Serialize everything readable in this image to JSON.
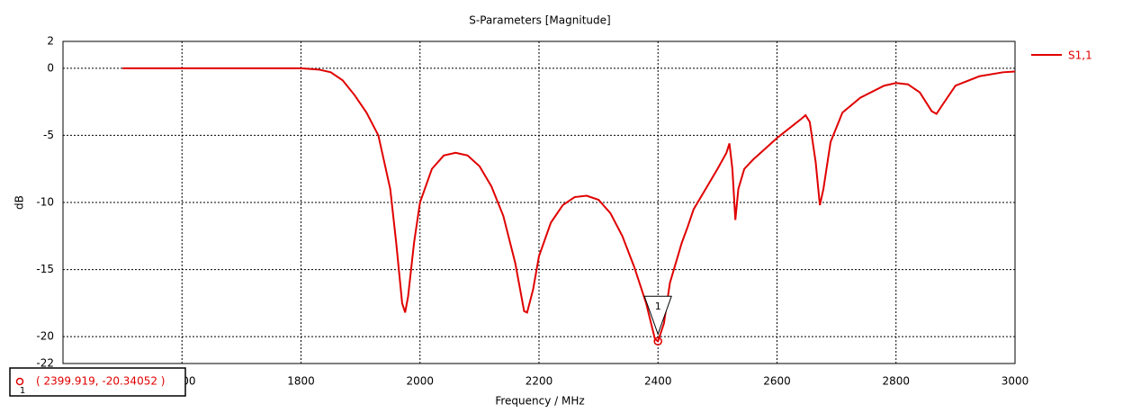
{
  "chart_data": {
    "type": "line",
    "title": "S-Parameters [Magnitude]",
    "x_label": "Frequency / MHz",
    "y_label": "dB",
    "xlim": [
      1400,
      3000
    ],
    "xticks": [
      1600,
      1800,
      2000,
      2200,
      2400,
      2600,
      2800,
      3000
    ],
    "ylim": [
      -22,
      2
    ],
    "yticks": [
      -22,
      -20,
      -15,
      -10,
      -5,
      0,
      2
    ],
    "grid": true,
    "legend": "top-right",
    "x": [
      1500,
      1800,
      1830,
      1850,
      1870,
      1890,
      1910,
      1930,
      1950,
      1960,
      1970,
      1975,
      1980,
      1990,
      2000,
      2020,
      2040,
      2060,
      2080,
      2100,
      2120,
      2140,
      2160,
      2175,
      2180,
      2190,
      2200,
      2220,
      2240,
      2260,
      2280,
      2300,
      2320,
      2340,
      2360,
      2380,
      2395,
      2400,
      2410,
      2420,
      2440,
      2450,
      2460,
      2480,
      2500,
      2515,
      2520,
      2525,
      2530,
      2535,
      2545,
      2560,
      2580,
      2600,
      2620,
      2640,
      2648,
      2655,
      2665,
      2672,
      2678,
      2690,
      2710,
      2740,
      2780,
      2800,
      2820,
      2840,
      2860,
      2868,
      2880,
      2900,
      2940,
      2980,
      3000
    ],
    "series": [
      {
        "name": "S1,1",
        "color": "#e00000",
        "values": [
          0,
          0,
          -0.1,
          -0.3,
          -0.9,
          -2,
          -3.3,
          -5,
          -9,
          -13,
          -17.5,
          -18.2,
          -17,
          -13,
          -10,
          -7.5,
          -6.5,
          -6.3,
          -6.5,
          -7.3,
          -8.8,
          -11,
          -14.5,
          -18.1,
          -18.2,
          -16.5,
          -14,
          -11.5,
          -10.2,
          -9.6,
          -9.5,
          -9.8,
          -10.8,
          -12.5,
          -14.8,
          -17.5,
          -20.2,
          -20.34,
          -19,
          -16,
          -13,
          -11.8,
          -10.5,
          -9,
          -7.5,
          -6.3,
          -5.6,
          -7.5,
          -11.3,
          -9,
          -7.5,
          -6.8,
          -6,
          -5.2,
          -4.5,
          -3.8,
          -3.5,
          -4,
          -7,
          -10.2,
          -9,
          -5.5,
          -3.3,
          -2.2,
          -1.3,
          -1.1,
          -1.2,
          -1.8,
          -3.2,
          -3.4,
          -2.6,
          -1.3,
          -0.6,
          -0.3,
          -0.25
        ]
      }
    ],
    "marker": {
      "label": "1",
      "x": 2399.919,
      "y": -20.34052,
      "text": "( 2399.919, -20.34052 )"
    }
  }
}
